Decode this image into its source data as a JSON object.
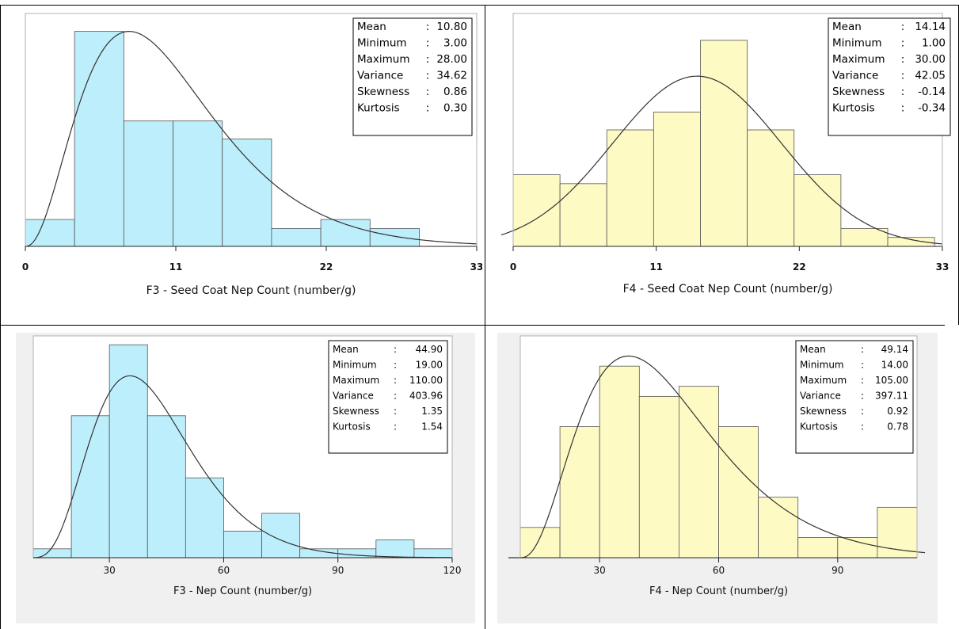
{
  "colors": {
    "blue_fill": "#bdeefb",
    "yellow_fill": "#fefac4",
    "bar_stroke": "#555555",
    "curve": "#333333",
    "panel_bg": "#f0f0f0"
  },
  "chart_data": [
    {
      "type": "bar",
      "title": "",
      "xlabel": "F3 - Seed Coat Nep Count (number/g)",
      "ylabel": "",
      "xlim": [
        0,
        33
      ],
      "xticks": [
        "0",
        "11",
        "22",
        "33"
      ],
      "bin_edges": [
        0,
        3.6,
        7.2,
        10.8,
        14.4,
        18,
        21.6,
        25.2,
        28.8
      ],
      "values": [
        3,
        24,
        14,
        14,
        12,
        2,
        3,
        2
      ],
      "ylim": [
        0,
        26
      ],
      "curve": {
        "type": "skewed",
        "shape": 3.37,
        "scale": 3.2,
        "offset": 0,
        "peak": 24,
        "xmax": 33
      },
      "stats": [
        {
          "name": "Mean",
          "value": "10.80"
        },
        {
          "name": "Minimum",
          "value": "3.00"
        },
        {
          "name": "Maximum",
          "value": "28.00"
        },
        {
          "name": "Variance",
          "value": "34.62"
        },
        {
          "name": "Skewness",
          "value": "0.86"
        },
        {
          "name": "Kurtosis",
          "value": "0.30"
        }
      ],
      "legend": "top-right"
    },
    {
      "type": "bar",
      "title": "",
      "xlabel": "F4 - Seed Coat Nep Count (number/g)",
      "ylabel": "",
      "xlim": [
        0,
        33
      ],
      "xticks": [
        "0",
        "11",
        "22",
        "33"
      ],
      "bin_edges": [
        0,
        3.6,
        7.2,
        10.8,
        14.4,
        18,
        21.6,
        25.2,
        28.8,
        32.4
      ],
      "values": [
        8,
        7,
        13,
        15,
        23,
        13,
        8,
        2,
        1
      ],
      "ylim": [
        0,
        26
      ],
      "curve": {
        "type": "normal",
        "mean": 14.14,
        "sd": 6.48,
        "peak": 19,
        "xmin": -1.2,
        "xmax": 33
      },
      "stats": [
        {
          "name": "Mean",
          "value": "14.14"
        },
        {
          "name": "Minimum",
          "value": "1.00"
        },
        {
          "name": "Maximum",
          "value": "30.00"
        },
        {
          "name": "Variance",
          "value": "42.05"
        },
        {
          "name": "Skewness",
          "value": "-0.14"
        },
        {
          "name": "Kurtosis",
          "value": "-0.34"
        }
      ],
      "legend": "top-right"
    },
    {
      "type": "bar",
      "title": "",
      "xlabel": "F3 - Nep Count (number/g)",
      "ylabel": "",
      "xlim": [
        10,
        120
      ],
      "xticks": [
        "30",
        "60",
        "90",
        "120"
      ],
      "xtick_values": [
        30,
        60,
        90,
        120
      ],
      "bin_edges": [
        10,
        20,
        30,
        40,
        50,
        60,
        70,
        80,
        90,
        100,
        110,
        120
      ],
      "values": [
        1,
        16,
        24,
        16,
        9,
        3,
        5,
        1,
        1,
        2,
        1
      ],
      "ylim": [
        0,
        25
      ],
      "curve": {
        "type": "skewed",
        "shape": 5.0,
        "scale": 6.6,
        "offset": 9,
        "peak": 20.5,
        "xmin": 10,
        "xmax": 120
      },
      "stats": [
        {
          "name": "Mean",
          "value": "44.90"
        },
        {
          "name": "Minimum",
          "value": "19.00"
        },
        {
          "name": "Maximum",
          "value": "110.00"
        },
        {
          "name": "Variance",
          "value": "403.96"
        },
        {
          "name": "Skewness",
          "value": "1.35"
        },
        {
          "name": "Kurtosis",
          "value": "1.54"
        }
      ],
      "legend": "top-right"
    },
    {
      "type": "bar",
      "title": "",
      "xlabel": "F4 - Nep Count (number/g)",
      "ylabel": "",
      "xlim": [
        10,
        110
      ],
      "xticks": [
        "30",
        "60",
        "90"
      ],
      "xtick_values": [
        30,
        60,
        90
      ],
      "bin_edges": [
        10,
        20,
        30,
        40,
        50,
        60,
        70,
        80,
        90,
        100,
        110
      ],
      "values": [
        3,
        13,
        19,
        16,
        17,
        13,
        6,
        2,
        2,
        5
      ],
      "ylim": [
        0,
        22
      ],
      "curve": {
        "type": "skewed",
        "shape": 3.6,
        "scale": 10.5,
        "offset": 10,
        "peak": 20,
        "xmin": 7,
        "xmax": 112
      },
      "stats": [
        {
          "name": "Mean",
          "value": "49.14"
        },
        {
          "name": "Minimum",
          "value": "14.00"
        },
        {
          "name": "Maximum",
          "value": "105.00"
        },
        {
          "name": "Variance",
          "value": "397.11"
        },
        {
          "name": "Skewness",
          "value": "0.92"
        },
        {
          "name": "Kurtosis",
          "value": "0.78"
        }
      ],
      "legend": "top-right"
    }
  ]
}
